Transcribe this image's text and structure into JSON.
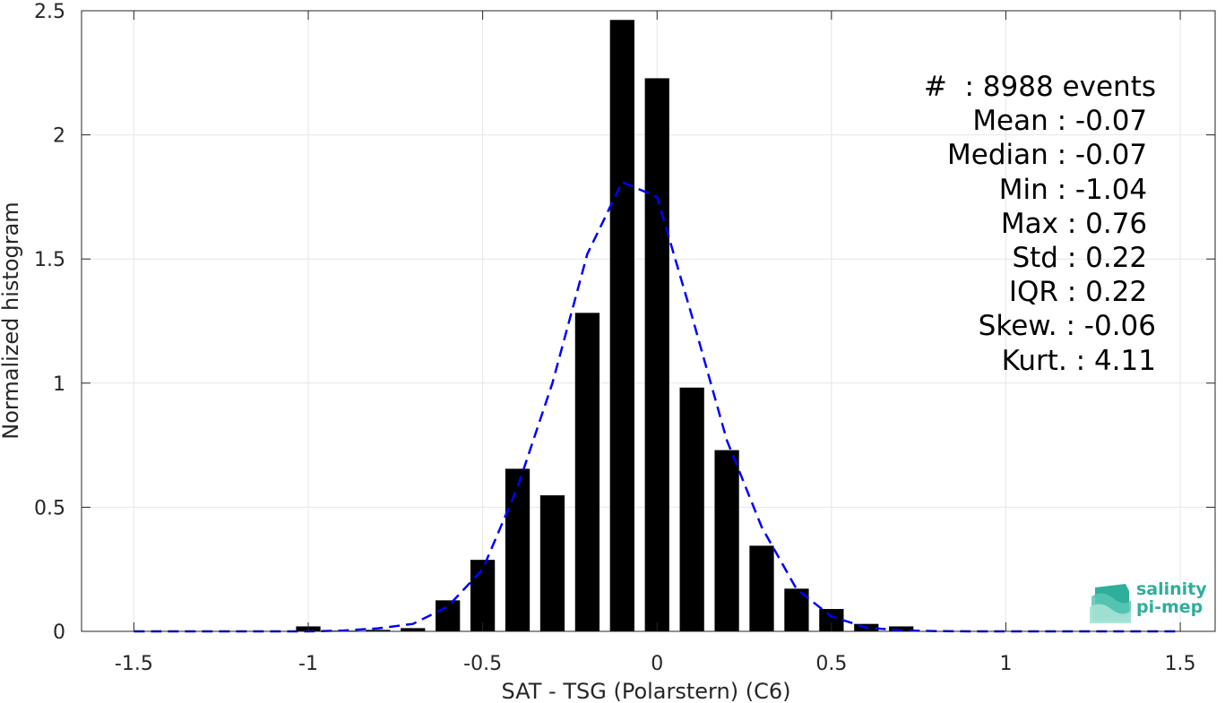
{
  "chart_data": {
    "type": "bar",
    "xlabel": "SAT - TSG (Polarstern) (C6)",
    "ylabel": "Normalized histogram",
    "xlim": [
      -1.65,
      1.6
    ],
    "ylim": [
      0,
      2.5
    ],
    "xticks": [
      -1.5,
      -1,
      -0.5,
      0,
      0.5,
      1,
      1.5
    ],
    "xtick_labels": [
      "-1.5",
      "-1",
      "-0.5",
      "0",
      "0.5",
      "1",
      "1.5"
    ],
    "yticks": [
      0,
      0.5,
      1,
      1.5,
      2,
      2.5
    ],
    "ytick_labels": [
      "0",
      "0.5",
      "1",
      "1.5",
      "2",
      "2.5"
    ],
    "grid": true,
    "bar_width": 0.07,
    "bars": {
      "x": [
        -1.5,
        -1.4,
        -1.3,
        -1.2,
        -1.1,
        -1.0,
        -0.9,
        -0.8,
        -0.7,
        -0.6,
        -0.5,
        -0.4,
        -0.3,
        -0.2,
        -0.1,
        0.0,
        0.1,
        0.2,
        0.3,
        0.4,
        0.5,
        0.6,
        0.7,
        0.8,
        0.9,
        1.0,
        1.1,
        1.2,
        1.3,
        1.4,
        1.5
      ],
      "values": [
        0,
        0,
        0,
        0,
        0,
        0.02,
        0.003,
        0.006,
        0.013,
        0.125,
        0.288,
        0.655,
        0.548,
        1.283,
        2.463,
        2.228,
        0.982,
        0.73,
        0.345,
        0.172,
        0.09,
        0.03,
        0.02,
        0,
        0,
        0,
        0,
        0,
        0,
        0,
        0
      ],
      "color": "#000000"
    },
    "fit": {
      "style": "dashed",
      "color": "#0000ff",
      "x": [
        -1.5,
        -1.4,
        -1.3,
        -1.2,
        -1.1,
        -1.0,
        -0.9,
        -0.8,
        -0.7,
        -0.6,
        -0.5,
        -0.4,
        -0.3,
        -0.2,
        -0.1,
        0.0,
        0.1,
        0.2,
        0.3,
        0.4,
        0.5,
        0.6,
        0.7,
        0.8,
        0.9,
        1.0,
        1.1,
        1.2,
        1.3,
        1.4,
        1.5
      ],
      "values": [
        0,
        0,
        0,
        0,
        0,
        0,
        0.003,
        0.012,
        0.03,
        0.1,
        0.25,
        0.58,
        1.0,
        1.52,
        1.81,
        1.75,
        1.27,
        0.77,
        0.42,
        0.17,
        0.06,
        0.015,
        0.004,
        0.001,
        0,
        0,
        0,
        0,
        0,
        0,
        0
      ]
    }
  },
  "stats": [
    "#  : 8988 events",
    "Mean : -0.07 ",
    "Median : -0.07 ",
    "Min : -1.04 ",
    "Max : 0.76 ",
    "Std : 0.22 ",
    "IQR : 0.22 ",
    "Skew. : -0.06",
    "Kurt. : 4.11"
  ],
  "logo": {
    "line1": "salinity",
    "line2": "pi-mep",
    "color": "#2fae9c"
  }
}
